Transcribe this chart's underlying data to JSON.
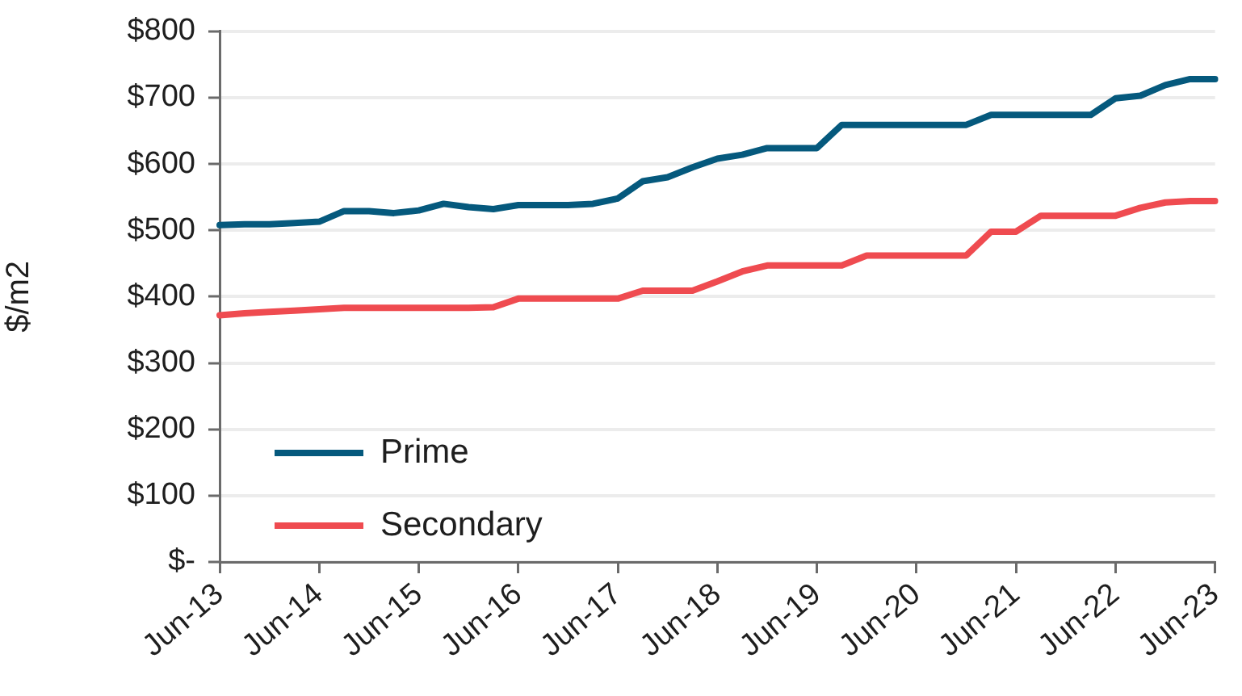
{
  "chart_data": {
    "type": "line",
    "categories": [
      "Jun-13",
      null,
      null,
      null,
      "Jun-14",
      null,
      null,
      null,
      "Jun-15",
      null,
      null,
      null,
      "Jun-16",
      null,
      null,
      null,
      "Jun-17",
      null,
      null,
      null,
      "Jun-18",
      null,
      null,
      null,
      "Jun-19",
      null,
      null,
      null,
      "Jun-20",
      null,
      null,
      null,
      "Jun-21",
      null,
      null,
      null,
      "Jun-22",
      null,
      null,
      null,
      "Jun-23"
    ],
    "series": [
      {
        "name": "Prime",
        "color": "#05597d",
        "values": [
          508,
          509,
          509,
          511,
          513,
          529,
          529,
          526,
          530,
          540,
          535,
          532,
          538,
          538,
          538,
          540,
          548,
          574,
          580,
          595,
          608,
          614,
          624,
          624,
          624,
          659,
          659,
          659,
          659,
          659,
          659,
          674,
          674,
          674,
          674,
          674,
          699,
          703,
          719,
          728,
          728
        ]
      },
      {
        "name": "Secondary",
        "color": "#ef4b50",
        "values": [
          372,
          375,
          377,
          379,
          381,
          383,
          383,
          383,
          383,
          383,
          383,
          384,
          397,
          397,
          397,
          397,
          397,
          409,
          409,
          409,
          423,
          438,
          447,
          447,
          447,
          447,
          462,
          462,
          462,
          462,
          462,
          498,
          498,
          522,
          522,
          522,
          522,
          534,
          542,
          544,
          544
        ]
      }
    ],
    "ylabel": "$/m2",
    "ylim": [
      0,
      800
    ],
    "yticks": [
      {
        "value": 0,
        "label": "$-"
      },
      {
        "value": 100,
        "label": "$100"
      },
      {
        "value": 200,
        "label": "$200"
      },
      {
        "value": 300,
        "label": "$300"
      },
      {
        "value": 400,
        "label": "$400"
      },
      {
        "value": 500,
        "label": "$500"
      },
      {
        "value": 600,
        "label": "$600"
      },
      {
        "value": 700,
        "label": "$700"
      },
      {
        "value": 800,
        "label": "$800"
      }
    ],
    "grid": "y",
    "legend": "bottom left",
    "marker": "none",
    "line_style": "solid"
  }
}
